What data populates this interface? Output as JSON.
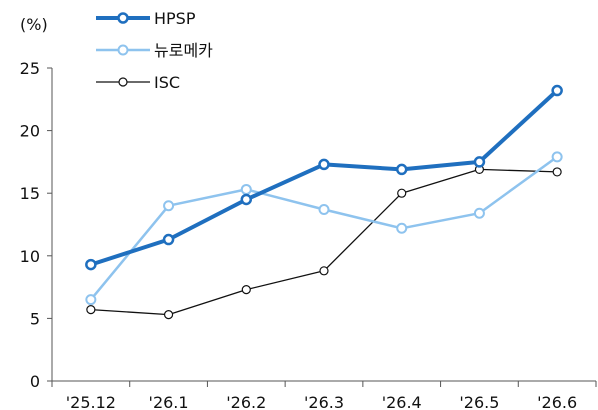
{
  "chart_data": {
    "type": "line",
    "categories": [
      "'25.12",
      "'26.1",
      "'26.2",
      "'26.3",
      "'26.4",
      "'26.5",
      "'26.6"
    ],
    "ylabel": "(%)",
    "ylim": [
      0,
      25
    ],
    "yticks": [
      "0",
      "5",
      "10",
      "15",
      "20",
      "25"
    ],
    "grid": false,
    "legend_position": "top-left",
    "series": [
      {
        "name": "HPSP",
        "color": "#1f6fbf",
        "values": [
          9.3,
          11.3,
          14.5,
          17.3,
          16.9,
          17.5,
          23.2
        ]
      },
      {
        "name": "뉴로메카",
        "color": "#8ec3ee",
        "values": [
          6.5,
          14.0,
          15.3,
          13.7,
          12.2,
          13.4,
          17.9
        ]
      },
      {
        "name": "ISC",
        "color": "#111111",
        "values": [
          5.7,
          5.3,
          7.3,
          8.8,
          15.0,
          16.9,
          16.7
        ]
      }
    ]
  }
}
